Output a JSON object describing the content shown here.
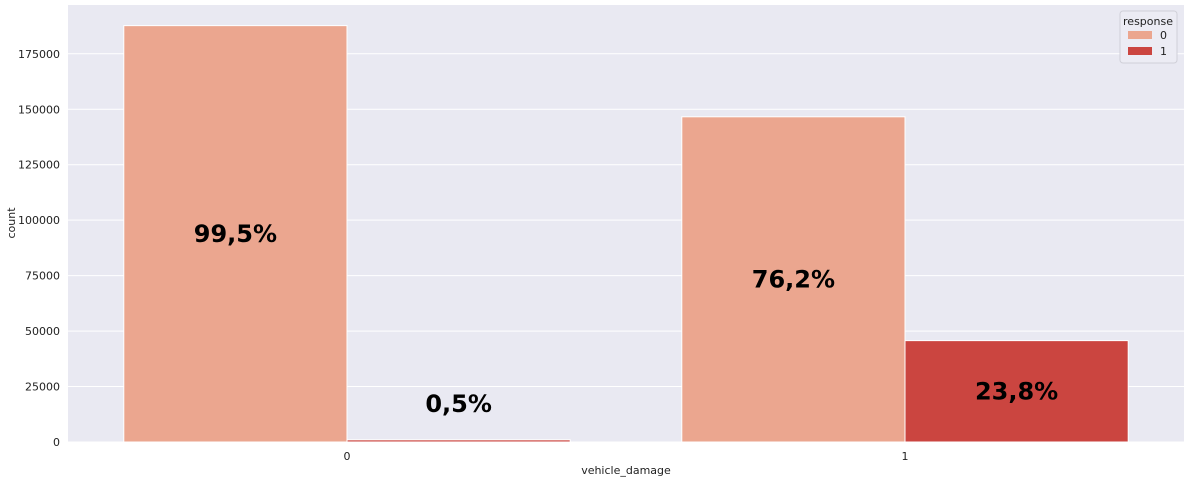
{
  "chart_data": {
    "type": "bar",
    "xlabel": "vehicle_damage",
    "ylabel": "count",
    "categories": [
      "0",
      "1"
    ],
    "series": [
      {
        "name": "0",
        "color": "#eba68f",
        "values": [
          187700,
          146600
        ]
      },
      {
        "name": "1",
        "color": "#cb4540",
        "values": [
          980,
          45700
        ]
      }
    ],
    "bar_labels": [
      {
        "series": 0,
        "category": 0,
        "text": "99,5%"
      },
      {
        "series": 1,
        "category": 0,
        "text": "0,5%"
      },
      {
        "series": 0,
        "category": 1,
        "text": "76,2%"
      },
      {
        "series": 1,
        "category": 1,
        "text": "23,8%"
      }
    ],
    "yticks": [
      0,
      25000,
      50000,
      75000,
      100000,
      125000,
      150000,
      175000
    ],
    "ylim": [
      0,
      197000
    ],
    "grid": true,
    "background": "#e9e9f2",
    "legend": {
      "title": "response",
      "placement": "top-right"
    }
  }
}
